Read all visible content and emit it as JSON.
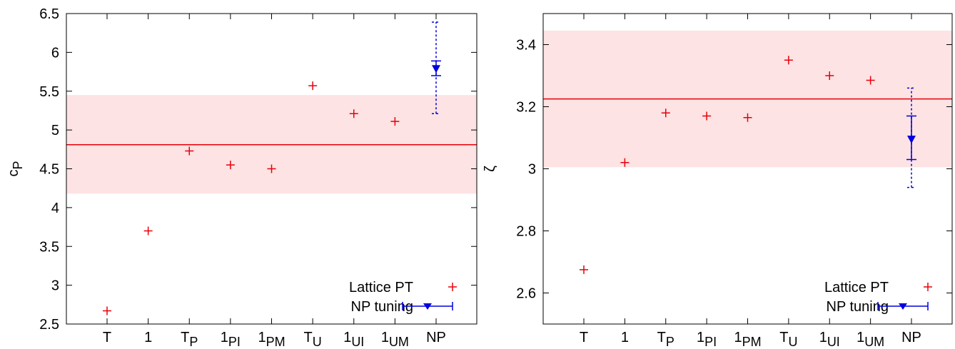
{
  "chart_data": [
    {
      "type": "scatter",
      "ylabel_main": "c",
      "ylabel_sub": "P",
      "ylim": [
        2.5,
        6.5
      ],
      "yticks": [
        {
          "value": 2.5,
          "label": "2.5"
        },
        {
          "value": 3,
          "label": "3"
        },
        {
          "value": 3.5,
          "label": "3.5"
        },
        {
          "value": 4,
          "label": "4"
        },
        {
          "value": 4.5,
          "label": "4.5"
        },
        {
          "value": 5,
          "label": "5"
        },
        {
          "value": 5.5,
          "label": "5.5"
        },
        {
          "value": 6,
          "label": "6"
        },
        {
          "value": 6.5,
          "label": "6.5"
        }
      ],
      "categories": [
        {
          "main": "T",
          "sub": ""
        },
        {
          "main": "1",
          "sub": ""
        },
        {
          "main": "T",
          "sub": "P"
        },
        {
          "main": "1",
          "sub": "PI"
        },
        {
          "main": "1",
          "sub": "PM"
        },
        {
          "main": "T",
          "sub": "U"
        },
        {
          "main": "1",
          "sub": "UI"
        },
        {
          "main": "1",
          "sub": "UM"
        },
        {
          "main": "NP",
          "sub": ""
        }
      ],
      "band": {
        "center": 4.81,
        "low": 4.18,
        "high": 5.45,
        "color": "#fde3e3",
        "line_color": "#e8000b"
      },
      "series": [
        {
          "name": "Lattice PT",
          "marker": "plus",
          "color": "#e8000b",
          "values": [
            2.67,
            3.7,
            4.73,
            4.55,
            4.5,
            5.57,
            5.21,
            5.11,
            null
          ]
        },
        {
          "name": "NP tuning",
          "marker": "triangle-down",
          "color": "#0000e0",
          "values": [
            null,
            null,
            null,
            null,
            null,
            null,
            null,
            null,
            5.79
          ],
          "err_stat": [
            5.7,
            5.89
          ],
          "err_sys": [
            5.21,
            6.39
          ]
        }
      ],
      "legend_position": "bottom-right",
      "grid": false
    },
    {
      "type": "scatter",
      "ylabel_main": "ζ",
      "ylabel_sub": "",
      "ylim": [
        2.5,
        3.5
      ],
      "yticks": [
        {
          "value": 2.6,
          "label": "2.6"
        },
        {
          "value": 2.8,
          "label": "2.8"
        },
        {
          "value": 3,
          "label": "3"
        },
        {
          "value": 3.2,
          "label": "3.2"
        },
        {
          "value": 3.4,
          "label": "3.4"
        }
      ],
      "categories": [
        {
          "main": "T",
          "sub": ""
        },
        {
          "main": "1",
          "sub": ""
        },
        {
          "main": "T",
          "sub": "P"
        },
        {
          "main": "1",
          "sub": "PI"
        },
        {
          "main": "1",
          "sub": "PM"
        },
        {
          "main": "T",
          "sub": "U"
        },
        {
          "main": "1",
          "sub": "UI"
        },
        {
          "main": "1",
          "sub": "UM"
        },
        {
          "main": "NP",
          "sub": ""
        }
      ],
      "band": {
        "center": 3.225,
        "low": 3.005,
        "high": 3.445,
        "color": "#fde3e3",
        "line_color": "#e8000b"
      },
      "series": [
        {
          "name": "Lattice PT",
          "marker": "plus",
          "color": "#e8000b",
          "values": [
            2.675,
            3.02,
            3.18,
            3.17,
            3.165,
            3.35,
            3.3,
            3.285,
            null
          ]
        },
        {
          "name": "NP tuning",
          "marker": "triangle-down",
          "color": "#0000e0",
          "values": [
            null,
            null,
            null,
            null,
            null,
            null,
            null,
            null,
            3.095
          ],
          "err_stat": [
            3.03,
            3.17
          ],
          "err_sys": [
            2.94,
            3.26
          ]
        }
      ],
      "legend_position": "bottom-right",
      "grid": false
    }
  ]
}
